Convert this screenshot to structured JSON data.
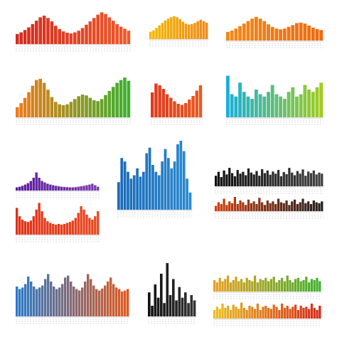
{
  "chart_data": [
    {
      "type": "bar",
      "colors": [
        "#d42a1e",
        "#ee5a2a"
      ],
      "ylim": [
        0,
        100
      ],
      "values": [
        30,
        35,
        42,
        50,
        60,
        70,
        80,
        85,
        78,
        68,
        55,
        45,
        38,
        34,
        32,
        35,
        40,
        48,
        58,
        68,
        78,
        88,
        95,
        90,
        80,
        70,
        60,
        52,
        46,
        40
      ]
    },
    {
      "type": "bar",
      "colors": [
        "#f5b800",
        "#f08a1a"
      ],
      "ylim": [
        0,
        100
      ],
      "values": [
        30,
        35,
        45,
        55,
        65,
        75,
        82,
        88,
        92,
        88,
        80,
        70,
        62,
        58,
        60,
        65,
        72,
        78,
        72,
        66
      ]
    },
    {
      "type": "bar",
      "colors": [
        "#f08a1a",
        "#f06a10"
      ],
      "ylim": [
        0,
        100
      ],
      "values": [
        35,
        40,
        48,
        58,
        68,
        78,
        88,
        95,
        88,
        78,
        65,
        55,
        48,
        45,
        48,
        55,
        62,
        70,
        72,
        68,
        60,
        52,
        46,
        42
      ]
    },
    {
      "type": "bar",
      "colors": [
        "#f07a18",
        "#3cb030"
      ],
      "ylim": [
        0,
        100
      ],
      "values": [
        25,
        35,
        48,
        62,
        78,
        92,
        95,
        85,
        68,
        50,
        38,
        32,
        30,
        32,
        38,
        45,
        52,
        56,
        54,
        48,
        42,
        40,
        45,
        55,
        65,
        75,
        85,
        92,
        98,
        90
      ]
    },
    {
      "type": "bar",
      "colors": [
        "#e03a1c",
        "#e85a20"
      ],
      "ylim": [
        0,
        100
      ],
      "values": [
        70,
        95,
        90,
        80,
        65,
        55,
        45,
        38,
        35,
        40,
        50,
        60,
        75,
        90
      ]
    },
    {
      "type": "bar",
      "colors": [
        "#1ab0d8",
        "#a0cc20"
      ],
      "ylim": [
        0,
        100
      ],
      "values": [
        90,
        50,
        45,
        75,
        55,
        45,
        40,
        60,
        50,
        45,
        55,
        70,
        50,
        45,
        40,
        55,
        65,
        45,
        50,
        70,
        60,
        55,
        65,
        75
      ]
    },
    {
      "type": "bar",
      "colors": [
        "#5a1a9a",
        "#7a3ab0"
      ],
      "ylim": [
        0,
        100
      ],
      "values": [
        15,
        18,
        22,
        28,
        35,
        45,
        60,
        85,
        60,
        45,
        38,
        32,
        28,
        25,
        22,
        20,
        18,
        17,
        16,
        15,
        15,
        16,
        18,
        20,
        22,
        25,
        28,
        32,
        25,
        18
      ]
    },
    {
      "type": "bar",
      "colors": [
        "#e03018",
        "#e84a20"
      ],
      "ylim": [
        0,
        100
      ],
      "values": [
        80,
        55,
        45,
        40,
        38,
        42,
        55,
        75,
        95,
        70,
        50,
        40,
        35,
        32,
        30,
        32,
        30,
        32,
        35,
        38,
        42,
        50,
        65,
        85,
        75,
        60,
        50,
        45,
        55,
        70
      ]
    },
    {
      "type": "bar",
      "colors": [
        "#1a6ab8",
        "#2a8ad0"
      ],
      "ylim": [
        0,
        100
      ],
      "values": [
        40,
        75,
        70,
        55,
        45,
        50,
        60,
        48,
        55,
        82,
        90,
        65,
        55,
        50,
        70,
        88,
        75,
        60,
        70,
        95,
        100,
        85,
        45,
        25
      ]
    },
    {
      "type": "bar",
      "colors": [
        "#101010",
        "#404040"
      ],
      "ylim": [
        0,
        100
      ],
      "values": [
        40,
        55,
        35,
        60,
        45,
        70,
        50,
        38,
        62,
        48,
        55,
        42,
        68,
        52,
        45,
        58,
        40,
        65,
        50,
        60,
        44,
        56,
        48,
        62,
        38,
        54,
        46,
        70,
        52,
        42,
        58,
        48,
        64,
        40,
        56,
        50,
        60,
        45,
        52,
        48
      ]
    },
    {
      "type": "bar",
      "colors": [
        "#d04010",
        "#202020"
      ],
      "ylim": [
        0,
        100
      ],
      "values": [
        30,
        50,
        40,
        70,
        35,
        55,
        45,
        80,
        40,
        60,
        50,
        35,
        65,
        45,
        55,
        40,
        75,
        50,
        35,
        60,
        45,
        55,
        40,
        70,
        50,
        45,
        60,
        35,
        55,
        65,
        40,
        50,
        70,
        45,
        55,
        40,
        60,
        50,
        45,
        55
      ]
    },
    {
      "type": "bar",
      "colors": [
        "#2a7ac8",
        "#e05a20"
      ],
      "ylim": [
        0,
        100
      ],
      "values": [
        60,
        55,
        58,
        65,
        80,
        70,
        60,
        55,
        58,
        62,
        75,
        85,
        70,
        60,
        55,
        58,
        65,
        78,
        82,
        70,
        60,
        55,
        52,
        58,
        70,
        85,
        75,
        62,
        55,
        52,
        56,
        62,
        70,
        78,
        65,
        58,
        55,
        50,
        52,
        55
      ]
    },
    {
      "type": "bar",
      "colors": [
        "#111111",
        "#333333"
      ],
      "ylim": [
        0,
        100
      ],
      "values": [
        45,
        20,
        60,
        35,
        80,
        25,
        100,
        40,
        70,
        30,
        55,
        35,
        45,
        25,
        40,
        30
      ]
    },
    {
      "type": "bar",
      "colors": [
        "#e8a020",
        "#40b030"
      ],
      "ylim": [
        0,
        100
      ],
      "values": [
        50,
        40,
        60,
        45,
        55,
        70,
        40,
        50,
        65,
        45,
        55,
        40,
        60,
        50,
        45,
        70,
        40,
        55,
        50,
        60,
        45,
        55,
        65,
        40,
        50,
        60,
        45,
        70,
        50,
        40,
        55,
        60,
        45,
        50,
        65,
        40,
        55,
        50,
        60,
        45
      ]
    },
    {
      "type": "bar",
      "colors": [
        "#e8c020",
        "#d82818"
      ],
      "ylim": [
        0,
        100
      ],
      "values": [
        40,
        55,
        45,
        70,
        50,
        60,
        40,
        65,
        55,
        45,
        75,
        50,
        40,
        60,
        55,
        45,
        70,
        40,
        55,
        60,
        50,
        45,
        65,
        55,
        40,
        70,
        50,
        60,
        45,
        55,
        65,
        40,
        60,
        50,
        55,
        45,
        70,
        50,
        40,
        60
      ]
    }
  ]
}
